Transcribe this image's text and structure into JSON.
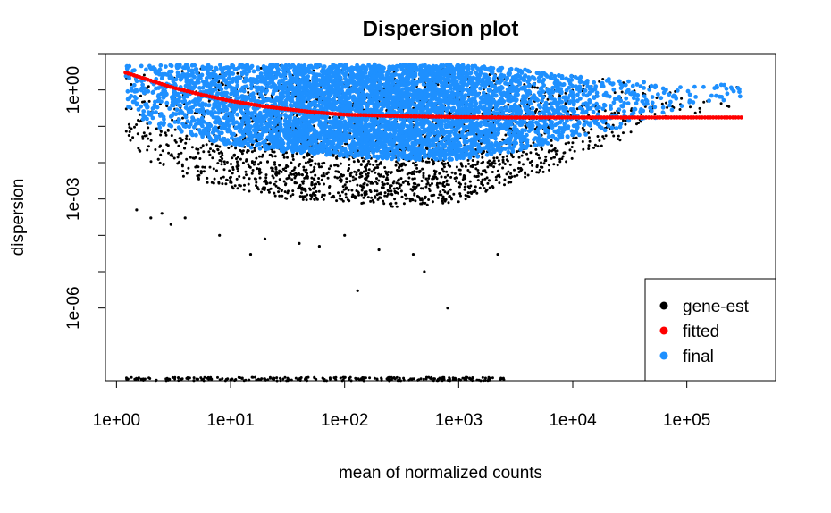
{
  "chart_data": {
    "type": "scatter",
    "title": "Dispersion plot",
    "xlabel": "mean of normalized counts",
    "ylabel": "dispersion",
    "x_scale": "log10",
    "y_scale": "log10",
    "xlim": [
      0.8,
      600000
    ],
    "ylim": [
      1e-08,
      10
    ],
    "x_ticks": [
      1,
      10,
      100,
      1000,
      10000,
      100000
    ],
    "x_tick_labels": [
      "1e+00",
      "1e+01",
      "1e+02",
      "1e+03",
      "1e+04",
      "1e+05"
    ],
    "y_ticks": [
      1,
      0.001,
      1e-06
    ],
    "y_tick_labels": [
      "1e+00",
      "1e-03",
      "1e-06"
    ],
    "y_minor_ticks": [
      10,
      0.1,
      0.01,
      0.0001,
      1e-05
    ],
    "legend": {
      "position": "bottom-right",
      "entries": [
        {
          "label": "gene-est",
          "color": "#000000"
        },
        {
          "label": "fitted",
          "color": "#ff0000"
        },
        {
          "label": "final",
          "color": "#1e90ff"
        }
      ]
    },
    "series": [
      {
        "name": "fitted",
        "color": "#ff0000",
        "x": [
          1.2,
          2,
          3,
          5,
          10,
          20,
          50,
          100,
          300,
          1000,
          3000,
          10000,
          30000,
          100000,
          300000
        ],
        "y": [
          3.0,
          1.8,
          1.2,
          0.8,
          0.5,
          0.35,
          0.25,
          0.21,
          0.19,
          0.18,
          0.175,
          0.175,
          0.175,
          0.175,
          0.175
        ]
      },
      {
        "name": "final",
        "color": "#1e90ff",
        "x": [
          1.2,
          2,
          5,
          10,
          30,
          100,
          300,
          1000,
          3000,
          10000,
          30000,
          100000,
          300000
        ],
        "y_upper": [
          5.0,
          5.0,
          5.0,
          5.0,
          5.0,
          5.0,
          5.0,
          5.0,
          4.0,
          2.5,
          1.8,
          1.5,
          1.4
        ],
        "y_lower": [
          0.3,
          0.1,
          0.05,
          0.03,
          0.02,
          0.015,
          0.012,
          0.012,
          0.02,
          0.05,
          0.1,
          0.3,
          0.6
        ]
      },
      {
        "name": "gene-est",
        "color": "#000000",
        "x": [
          1.2,
          2,
          5,
          10,
          30,
          100,
          300,
          1000,
          3000,
          10000,
          30000,
          100000,
          300000
        ],
        "y_upper": [
          5.0,
          5.0,
          5.0,
          5.0,
          5.0,
          5.0,
          5.0,
          5.0,
          5.0,
          3.0,
          2.2,
          1.8,
          1.6
        ],
        "y_lower": [
          0.05,
          0.01,
          0.003,
          0.002,
          0.001,
          0.0008,
          0.0006,
          0.0008,
          0.003,
          0.01,
          0.05,
          0.2,
          0.4
        ],
        "outliers_x": [
          1.5,
          2,
          2.5,
          3,
          4,
          8,
          15,
          20,
          40,
          60,
          100,
          130,
          200,
          400,
          500,
          800,
          2200
        ],
        "outliers_y": [
          0.0005,
          0.0003,
          0.0004,
          0.0002,
          0.0003,
          0.0001,
          3e-05,
          8e-05,
          6e-05,
          5e-05,
          0.0001,
          3e-06,
          4e-05,
          3e-05,
          1e-05,
          1e-06,
          3e-05
        ],
        "floor_y": 1e-08,
        "floor_x_range": [
          1.2,
          2500
        ]
      }
    ]
  }
}
